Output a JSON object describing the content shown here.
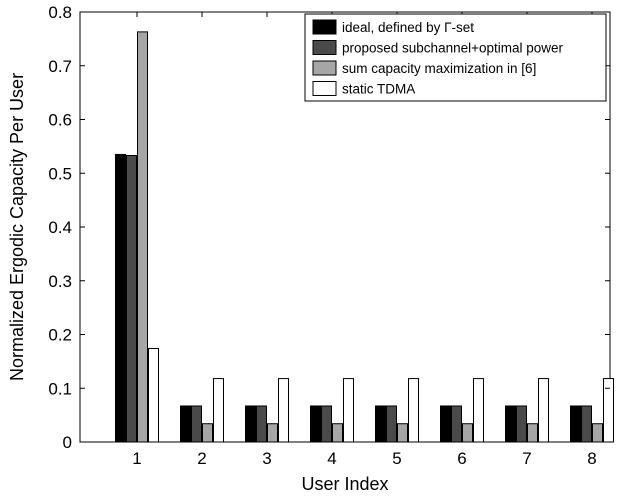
{
  "chart_data": {
    "type": "bar",
    "title": "",
    "xlabel": "User Index",
    "ylabel": "Normalized Ergodic Capacity Per User",
    "categories": [
      "1",
      "2",
      "3",
      "4",
      "5",
      "6",
      "7",
      "8"
    ],
    "ylim": [
      0,
      0.8
    ],
    "yticks": [
      "0",
      "0.1",
      "0.2",
      "0.3",
      "0.4",
      "0.5",
      "0.6",
      "0.7",
      "0.8"
    ],
    "grid": false,
    "legend_position": "top-right",
    "series": [
      {
        "name": "ideal, defined by Γ-set",
        "color": "#000000",
        "values": [
          0.535,
          0.067,
          0.067,
          0.067,
          0.067,
          0.067,
          0.067,
          0.067
        ]
      },
      {
        "name": "proposed subchannel+optimal power",
        "color": "#4a4a4a",
        "values": [
          0.533,
          0.067,
          0.067,
          0.067,
          0.067,
          0.067,
          0.067,
          0.067
        ]
      },
      {
        "name": "sum capacity maximization in [6]",
        "color": "#a6a6a6",
        "values": [
          0.763,
          0.034,
          0.034,
          0.034,
          0.034,
          0.034,
          0.034,
          0.034
        ]
      },
      {
        "name": "static TDMA",
        "color": "#ffffff",
        "values": [
          0.174,
          0.118,
          0.118,
          0.118,
          0.118,
          0.118,
          0.118,
          0.118
        ]
      }
    ]
  }
}
